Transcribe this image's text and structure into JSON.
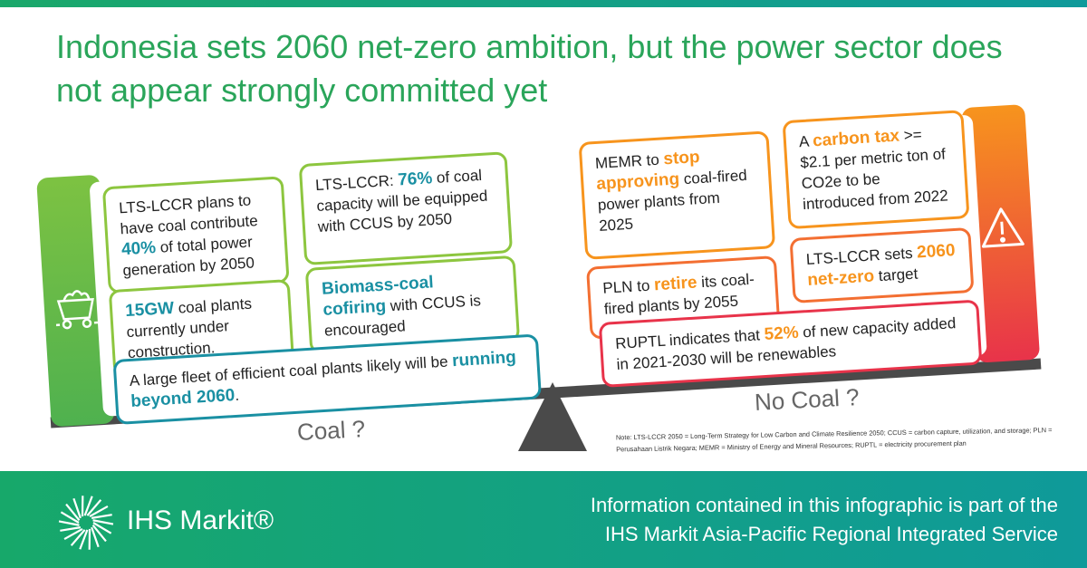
{
  "title": "Indonesia sets 2060 net-zero ambition, but the power sector does not appear strongly committed yet",
  "left": {
    "label": "Coal ?",
    "boxes": [
      {
        "runs": [
          {
            "text": "LTS-LCCR plans to have coal contribute "
          },
          {
            "text": "40%",
            "em": true
          },
          {
            "text": " of total power generation by 2050"
          }
        ]
      },
      {
        "runs": [
          {
            "text": "LTS-LCCR: "
          },
          {
            "text": "76%",
            "em": true
          },
          {
            "text": " of coal capacity will be equipped with CCUS by 2050"
          }
        ]
      },
      {
        "runs": [
          {
            "text": "15GW",
            "em": true
          },
          {
            "text": " coal plants currently under construction."
          }
        ]
      },
      {
        "runs": [
          {
            "text": "Biomass-coal cofiring",
            "em": true
          },
          {
            "text": " with CCUS is encouraged"
          }
        ]
      },
      {
        "runs": [
          {
            "text": "A large fleet of efficient coal plants likely will be "
          },
          {
            "text": "running beyond 2060",
            "em": true
          },
          {
            "text": "."
          }
        ]
      }
    ]
  },
  "right": {
    "label": "No Coal ?",
    "boxes": [
      {
        "runs": [
          {
            "text": "MEMR to "
          },
          {
            "text": "stop approving",
            "em": true
          },
          {
            "text": " coal-fired power plants from 2025"
          }
        ]
      },
      {
        "runs": [
          {
            "text": "A "
          },
          {
            "text": "carbon tax",
            "em": true
          },
          {
            "text": " >= $2.1 per metric ton of CO2e to be introduced from 2022"
          }
        ]
      },
      {
        "runs": [
          {
            "text": "PLN to "
          },
          {
            "text": "retire",
            "em": true
          },
          {
            "text": " its coal-fired plants by 2055"
          }
        ]
      },
      {
        "runs": [
          {
            "text": "LTS-LCCR sets "
          },
          {
            "text": "2060 net-zero",
            "em": true
          },
          {
            "text": " target"
          }
        ]
      },
      {
        "runs": [
          {
            "text": "RUPTL indicates that "
          },
          {
            "text": "52%",
            "em": true
          },
          {
            "text": " of new capacity added in 2021-2030 will be renewables"
          }
        ]
      }
    ]
  },
  "note": "Note: LTS-LCCR 2050 = Long-Term Strategy for Low Carbon and Climate Resilience 2050; CCUS = carbon capture, utilization, and storage; PLN = Perusahaan Listrik Negara; MEMR = Ministry of Energy and Mineral Resources; RUPTL = electricity procurement plan",
  "footer": {
    "logo": "IHS Markit®",
    "lines": [
      "Information contained in this infographic is part of the",
      "IHS Markit Asia-Pacific Regional Integrated Service"
    ]
  }
}
